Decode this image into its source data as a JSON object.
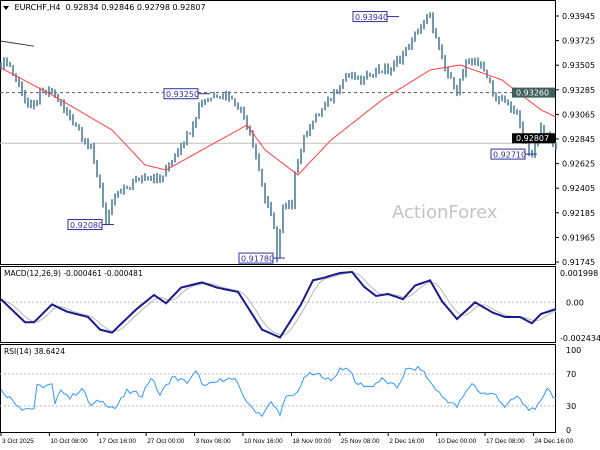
{
  "header": {
    "symbol": "EURCHF,H4",
    "open": "0.92834",
    "high": "0.92846",
    "low": "0.92798",
    "close": "0.92807"
  },
  "watermark": "ActionForex",
  "chart_data": [
    {
      "type": "ohlc",
      "title": "EURCHF,H4",
      "price_ticks": [
        "0.93945",
        "0.93725",
        "0.93505",
        "0.93285",
        "0.93065",
        "0.92845",
        "0.92625",
        "0.92405",
        "0.92185",
        "0.91965",
        "0.91745"
      ],
      "ylim": [
        0.91745,
        0.93945
      ],
      "close_keypoints": [
        [
          0,
          0.93507
        ],
        [
          2,
          0.93552
        ],
        [
          5,
          0.93373
        ],
        [
          10,
          0.93105
        ],
        [
          13,
          0.93239
        ],
        [
          17,
          0.93283
        ],
        [
          20,
          0.93149
        ],
        [
          25,
          0.9297
        ],
        [
          30,
          0.92747
        ],
        [
          33,
          0.92434
        ],
        [
          35,
          0.9208
        ],
        [
          38,
          0.92345
        ],
        [
          43,
          0.92434
        ],
        [
          48,
          0.92524
        ],
        [
          53,
          0.92479
        ],
        [
          57,
          0.92658
        ],
        [
          60,
          0.92792
        ],
        [
          63,
          0.92926
        ],
        [
          67,
          0.93194
        ],
        [
          72,
          0.93239
        ],
        [
          75,
          0.9325
        ],
        [
          80,
          0.93105
        ],
        [
          83,
          0.92926
        ],
        [
          86,
          0.92568
        ],
        [
          88,
          0.923
        ],
        [
          91,
          0.92076
        ],
        [
          92,
          0.9178
        ],
        [
          94,
          0.92211
        ],
        [
          97,
          0.92255
        ],
        [
          98,
          0.92568
        ],
        [
          102,
          0.92926
        ],
        [
          107,
          0.93105
        ],
        [
          112,
          0.93283
        ],
        [
          115,
          0.93418
        ],
        [
          120,
          0.93373
        ],
        [
          125,
          0.93462
        ],
        [
          130,
          0.93462
        ],
        [
          135,
          0.93641
        ],
        [
          140,
          0.93865
        ],
        [
          143,
          0.9394
        ],
        [
          145,
          0.9373
        ],
        [
          148,
          0.93462
        ],
        [
          152,
          0.93283
        ],
        [
          155,
          0.93507
        ],
        [
          158,
          0.93552
        ],
        [
          162,
          0.93418
        ],
        [
          165,
          0.93194
        ],
        [
          168,
          0.93194
        ],
        [
          172,
          0.9306
        ],
        [
          174,
          0.92836
        ],
        [
          177,
          0.9271
        ],
        [
          180,
          0.92926
        ],
        [
          183,
          0.92836
        ],
        [
          185,
          0.92807
        ]
      ],
      "ma_keypoints": [
        [
          0,
          0.9348
        ],
        [
          17,
          0.93239
        ],
        [
          37,
          0.92926
        ],
        [
          48,
          0.92613
        ],
        [
          55,
          0.92568
        ],
        [
          67,
          0.92747
        ],
        [
          82,
          0.9297
        ],
        [
          88,
          0.92747
        ],
        [
          99,
          0.92524
        ],
        [
          110,
          0.92836
        ],
        [
          127,
          0.93194
        ],
        [
          143,
          0.93462
        ],
        [
          153,
          0.93507
        ],
        [
          167,
          0.93373
        ],
        [
          180,
          0.93105
        ],
        [
          185,
          0.93042
        ]
      ],
      "trendline": [
        [
          0,
          0.9372
        ],
        [
          11,
          0.93675
        ]
      ],
      "level_line": {
        "price": 0.9326,
        "label": "0.93260"
      },
      "current_price": {
        "price": 0.92807,
        "label": "0.92807"
      },
      "annotations": [
        {
          "bar": 130,
          "price": 0.9394,
          "label": "0.93940",
          "side": "left"
        },
        {
          "bar": 67,
          "price": 0.9325,
          "label": "0.93250",
          "side": "left"
        },
        {
          "bar": 35,
          "price": 0.9208,
          "label": "0.92080",
          "side": "left"
        },
        {
          "bar": 92,
          "price": 0.9178,
          "label": "0.91780",
          "side": "left"
        },
        {
          "bar": 176,
          "price": 0.9271,
          "label": "0.92710",
          "side": "left"
        }
      ],
      "colors": {
        "bars": "#4f7f9f",
        "ma": "#ff4040",
        "level": "#555555",
        "label": "#3030a0"
      }
    },
    {
      "type": "line",
      "title": "MACD(12,26,9) -0.000461 -0.000481",
      "ticks": [
        "0.001998",
        "0.00",
        "-0.002434"
      ],
      "ylim": [
        -0.002434,
        0.001998
      ],
      "macd_keypoints": [
        [
          0,
          0.00021
        ],
        [
          8,
          -0.00136
        ],
        [
          11,
          -0.00136
        ],
        [
          17,
          -0.00014
        ],
        [
          22,
          -0.00064
        ],
        [
          29,
          -0.001
        ],
        [
          33,
          -0.00186
        ],
        [
          37,
          -0.00207
        ],
        [
          45,
          -0.0005
        ],
        [
          51,
          0.0005
        ],
        [
          55,
          -7e-05
        ],
        [
          60,
          0.001
        ],
        [
          67,
          0.00136
        ],
        [
          72,
          0.001
        ],
        [
          79,
          0.00071
        ],
        [
          87,
          -0.00186
        ],
        [
          93,
          -0.0024
        ],
        [
          100,
          -0.00014
        ],
        [
          104,
          0.0015
        ],
        [
          107,
          0.00164
        ],
        [
          113,
          0.002
        ],
        [
          117,
          0.00207
        ],
        [
          121,
          0.00107
        ],
        [
          125,
          0.00043
        ],
        [
          129,
          0.00057
        ],
        [
          134,
          0.00021
        ],
        [
          138,
          0.00114
        ],
        [
          143,
          0.0015
        ],
        [
          147,
          7e-05
        ],
        [
          152,
          -0.00114
        ],
        [
          158,
          0
        ],
        [
          164,
          -0.00071
        ],
        [
          168,
          -0.001
        ],
        [
          173,
          -0.001
        ],
        [
          177,
          -0.00143
        ],
        [
          180,
          -0.00079
        ],
        [
          185,
          -0.00046
        ]
      ],
      "colors": {
        "macd": "#1a1a8c",
        "signal": "#b8b8b8"
      }
    },
    {
      "type": "line",
      "title": "RSI(14) 38.6424",
      "ticks": [
        "100",
        "70",
        "30",
        "0"
      ],
      "ylim": [
        0,
        100
      ],
      "levels": [
        70,
        30
      ],
      "rsi_keypoints": [
        [
          0,
          50
        ],
        [
          7,
          27
        ],
        [
          11,
          27
        ],
        [
          12,
          54
        ],
        [
          17,
          56
        ],
        [
          18,
          31
        ],
        [
          20,
          52
        ],
        [
          23,
          40
        ],
        [
          27,
          52
        ],
        [
          30,
          30
        ],
        [
          33,
          37
        ],
        [
          38,
          27
        ],
        [
          42,
          48
        ],
        [
          47,
          44
        ],
        [
          50,
          66
        ],
        [
          53,
          44
        ],
        [
          57,
          66
        ],
        [
          62,
          60
        ],
        [
          65,
          72
        ],
        [
          68,
          54
        ],
        [
          75,
          65
        ],
        [
          78,
          62
        ],
        [
          83,
          29
        ],
        [
          87,
          19
        ],
        [
          90,
          34
        ],
        [
          93,
          21
        ],
        [
          95,
          40
        ],
        [
          98,
          44
        ],
        [
          102,
          69
        ],
        [
          107,
          69
        ],
        [
          110,
          60
        ],
        [
          113,
          77
        ],
        [
          116,
          77
        ],
        [
          118,
          59
        ],
        [
          123,
          54
        ],
        [
          127,
          63
        ],
        [
          132,
          53
        ],
        [
          135,
          75
        ],
        [
          140,
          77
        ],
        [
          143,
          60
        ],
        [
          147,
          42
        ],
        [
          152,
          29
        ],
        [
          157,
          59
        ],
        [
          160,
          46
        ],
        [
          165,
          44
        ],
        [
          168,
          29
        ],
        [
          172,
          42
        ],
        [
          175,
          29
        ],
        [
          178,
          23
        ],
        [
          182,
          53
        ],
        [
          185,
          39
        ]
      ],
      "colors": {
        "rsi": "#3399ff"
      }
    },
    {
      "type": "axis",
      "x_ticks": [
        "3 Oct 2025",
        "10 Oct 08:00",
        "17 Oct 16:00",
        "27 Oct 00:00",
        "3 Nov 08:00",
        "10 Nov 16:00",
        "18 Nov 00:00",
        "25 Nov 08:00",
        "2 Dec 16:00",
        "10 Dec 00:00",
        "17 Dec 08:00",
        "24 Dec 16:00"
      ]
    }
  ]
}
